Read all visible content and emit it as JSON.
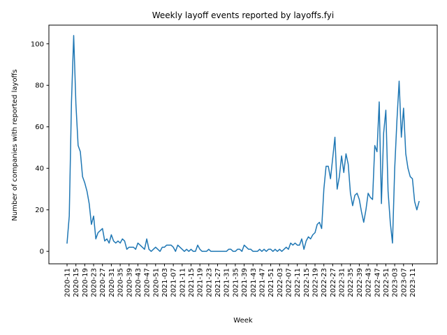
{
  "chart_data": {
    "type": "line",
    "title": "Weekly layoff events reported by layoffs.fyi",
    "xlabel": "Week",
    "ylabel": "Number of companies with reported layoffs",
    "ylim": [
      -6,
      109
    ],
    "yticks": [
      0,
      20,
      40,
      60,
      80,
      100
    ],
    "grid": false,
    "line_color": "#1f77b4",
    "x_tick_labels": [
      "2020-11",
      "2020-15",
      "2020-19",
      "2020-23",
      "2020-27",
      "2020-31",
      "2020-35",
      "2020-39",
      "2020-43",
      "2020-47",
      "2020-51",
      "2021-03",
      "2021-07",
      "2021-11",
      "2021-15",
      "2021-19",
      "2021-23",
      "2021-27",
      "2021-31",
      "2021-35",
      "2021-39",
      "2021-43",
      "2021-47",
      "2021-51",
      "2022-03",
      "2022-07",
      "2022-11",
      "2022-15",
      "2022-19",
      "2022-23",
      "2022-27",
      "2022-31",
      "2022-35",
      "2022-39",
      "2022-43",
      "2022-47",
      "2022-51",
      "2023-03",
      "2023-07",
      "2023-11"
    ],
    "series": [
      {
        "values": [
          4,
          17,
          72,
          104,
          71,
          51,
          48,
          36,
          33,
          29,
          23,
          13,
          17,
          6,
          9,
          10,
          11,
          5,
          6,
          4,
          8,
          5,
          4,
          5,
          4,
          6,
          5,
          1,
          2,
          2,
          2,
          1,
          4,
          3,
          2,
          1,
          6,
          1,
          0,
          1,
          2,
          1,
          0,
          2,
          2,
          3,
          3,
          3,
          2,
          0,
          3,
          2,
          1,
          0,
          1,
          0,
          1,
          0,
          0,
          3,
          1,
          0,
          0,
          0,
          1,
          0,
          0,
          0,
          0,
          0,
          0,
          0,
          0,
          1,
          1,
          0,
          0,
          1,
          1,
          0,
          3,
          2,
          1,
          1,
          0,
          0,
          0,
          1,
          0,
          1,
          0,
          1,
          1,
          0,
          1,
          0,
          1,
          0,
          1,
          2,
          1,
          4,
          3,
          4,
          3,
          3,
          6,
          1,
          5,
          7,
          6,
          8,
          9,
          13,
          14,
          11,
          30,
          41,
          41,
          35,
          45,
          55,
          30,
          36,
          46,
          38,
          47,
          42,
          28,
          22,
          27,
          28,
          25,
          19,
          14,
          20,
          28,
          26,
          25,
          51,
          48,
          72,
          23,
          57,
          68,
          29,
          14,
          4,
          40,
          63,
          82,
          55,
          69,
          47,
          40,
          36,
          35,
          24,
          20,
          24
        ]
      }
    ]
  }
}
